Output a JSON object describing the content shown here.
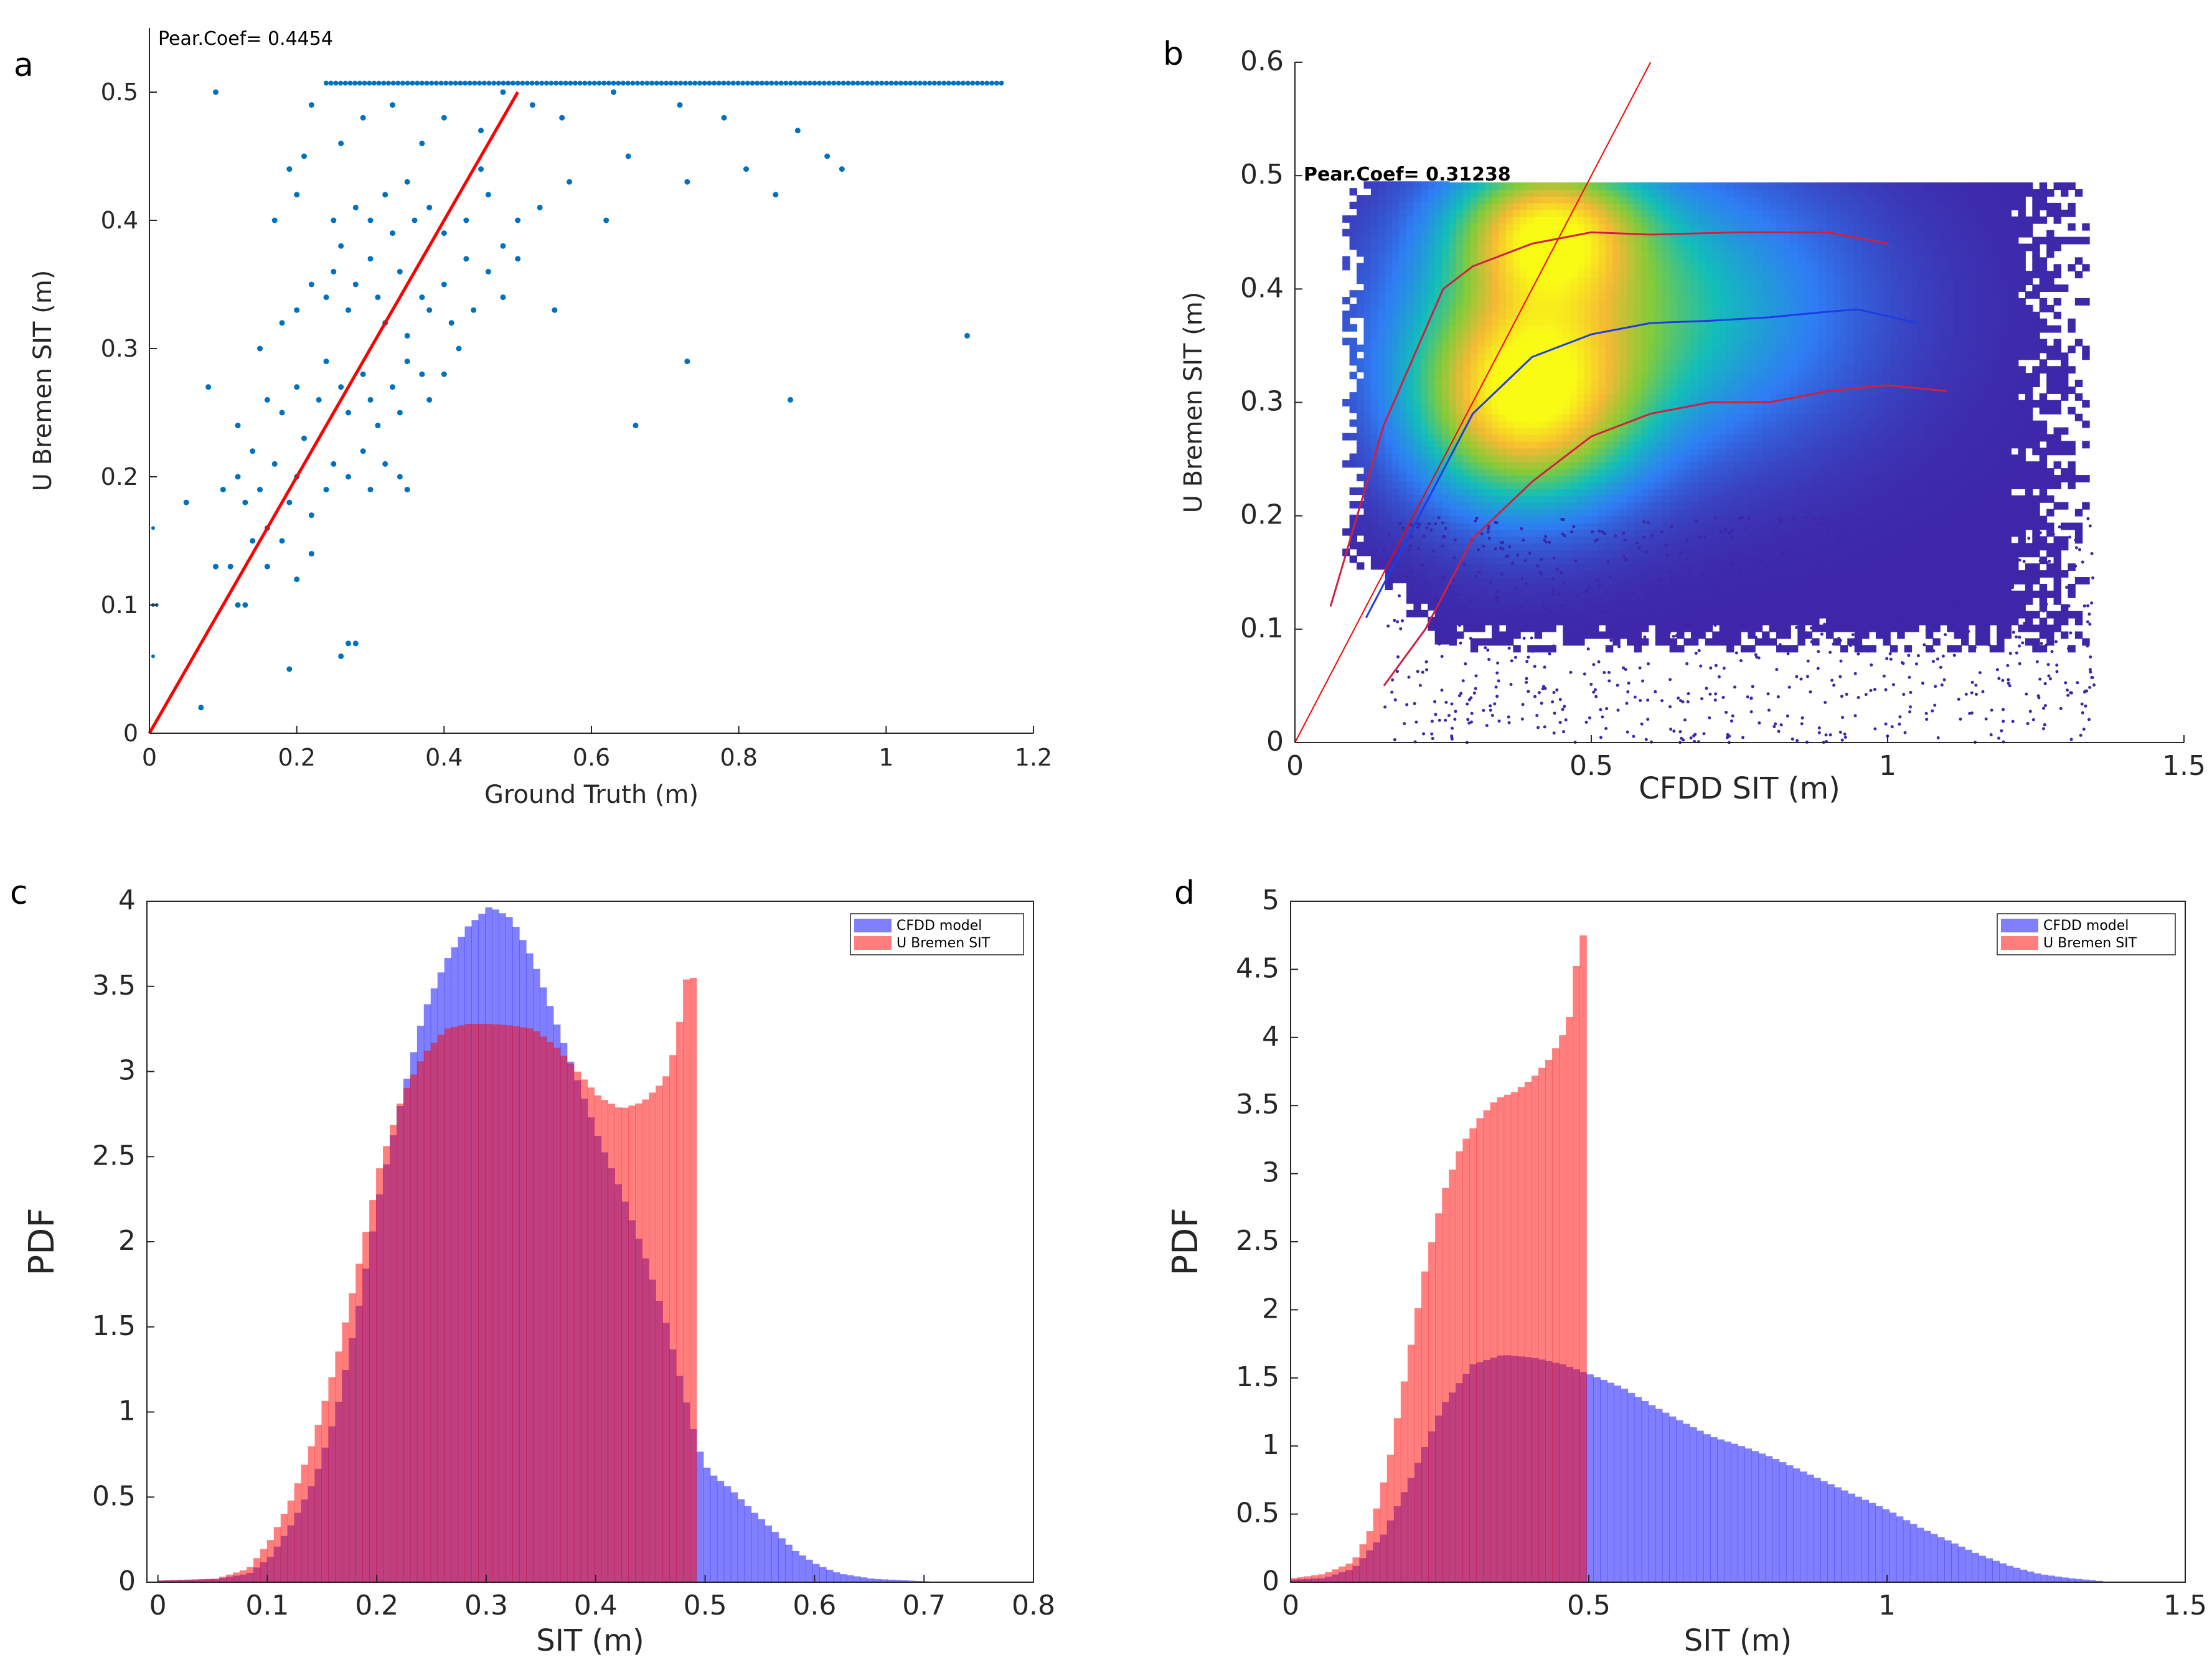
{
  "chart_data": [
    {
      "panel": "a",
      "type": "scatter",
      "annotation": "Pear.Coef= 0.4454",
      "xlabel": "Ground Truth (m)",
      "ylabel": "U Bremen SIT (m)",
      "xlim": [
        0,
        1.2
      ],
      "ylim": [
        0,
        0.55
      ],
      "xticks": [
        0,
        0.2,
        0.4,
        0.6,
        0.8,
        1,
        1.2
      ],
      "xtick_labels": [
        "0",
        "0.2",
        "0.4",
        "0.6",
        "0.8",
        "1",
        "1.2"
      ],
      "yticks": [
        0,
        0.1,
        0.2,
        0.3,
        0.4,
        0.5
      ],
      "ytick_labels": [
        "0",
        "0.1",
        "0.2",
        "0.3",
        "0.4",
        "0.5"
      ],
      "point_color": "#0072BD",
      "fit_color": "#FF0000",
      "fit_line": {
        "x": [
          0,
          0.5
        ],
        "y": [
          0,
          0.5
        ]
      },
      "saturation_row": {
        "y": 0.507,
        "x_start": 0.24,
        "x_end": 1.16
      },
      "points": [
        [
          0.09,
          0.5
        ],
        [
          0.19,
          0.44
        ],
        [
          0.21,
          0.45
        ],
        [
          0.22,
          0.49
        ],
        [
          0.26,
          0.46
        ],
        [
          0.29,
          0.48
        ],
        [
          0.33,
          0.49
        ],
        [
          0.37,
          0.46
        ],
        [
          0.4,
          0.48
        ],
        [
          0.45,
          0.47
        ],
        [
          0.48,
          0.5
        ],
        [
          0.52,
          0.49
        ],
        [
          0.56,
          0.48
        ],
        [
          0.63,
          0.5
        ],
        [
          0.72,
          0.49
        ],
        [
          0.78,
          0.48
        ],
        [
          0.88,
          0.47
        ],
        [
          0.92,
          0.45
        ],
        [
          0.94,
          0.44
        ],
        [
          0.65,
          0.45
        ],
        [
          0.73,
          0.43
        ],
        [
          0.81,
          0.44
        ],
        [
          0.85,
          0.42
        ],
        [
          0.17,
          0.4
        ],
        [
          0.2,
          0.42
        ],
        [
          0.25,
          0.4
        ],
        [
          0.26,
          0.38
        ],
        [
          0.28,
          0.41
        ],
        [
          0.3,
          0.4
        ],
        [
          0.32,
          0.42
        ],
        [
          0.33,
          0.39
        ],
        [
          0.35,
          0.43
        ],
        [
          0.36,
          0.4
        ],
        [
          0.38,
          0.41
        ],
        [
          0.4,
          0.39
        ],
        [
          0.43,
          0.4
        ],
        [
          0.46,
          0.42
        ],
        [
          0.48,
          0.38
        ],
        [
          0.5,
          0.4
        ],
        [
          0.53,
          0.41
        ],
        [
          0.57,
          0.43
        ],
        [
          0.62,
          0.4
        ],
        [
          0.45,
          0.44
        ],
        [
          0.15,
          0.3
        ],
        [
          0.18,
          0.32
        ],
        [
          0.2,
          0.33
        ],
        [
          0.22,
          0.35
        ],
        [
          0.24,
          0.34
        ],
        [
          0.25,
          0.36
        ],
        [
          0.27,
          0.33
        ],
        [
          0.28,
          0.35
        ],
        [
          0.3,
          0.37
        ],
        [
          0.31,
          0.34
        ],
        [
          0.32,
          0.32
        ],
        [
          0.34,
          0.36
        ],
        [
          0.35,
          0.31
        ],
        [
          0.37,
          0.34
        ],
        [
          0.38,
          0.33
        ],
        [
          0.4,
          0.35
        ],
        [
          0.41,
          0.32
        ],
        [
          0.43,
          0.37
        ],
        [
          0.44,
          0.33
        ],
        [
          0.46,
          0.36
        ],
        [
          0.48,
          0.34
        ],
        [
          0.5,
          0.37
        ],
        [
          0.55,
          0.33
        ],
        [
          0.12,
          0.24
        ],
        [
          0.14,
          0.22
        ],
        [
          0.16,
          0.26
        ],
        [
          0.18,
          0.25
        ],
        [
          0.2,
          0.27
        ],
        [
          0.21,
          0.23
        ],
        [
          0.23,
          0.26
        ],
        [
          0.24,
          0.29
        ],
        [
          0.26,
          0.27
        ],
        [
          0.27,
          0.25
        ],
        [
          0.29,
          0.28
        ],
        [
          0.3,
          0.26
        ],
        [
          0.31,
          0.24
        ],
        [
          0.33,
          0.27
        ],
        [
          0.34,
          0.25
        ],
        [
          0.35,
          0.29
        ],
        [
          0.37,
          0.28
        ],
        [
          0.38,
          0.26
        ],
        [
          0.4,
          0.28
        ],
        [
          0.42,
          0.3
        ],
        [
          0.1,
          0.19
        ],
        [
          0.12,
          0.2
        ],
        [
          0.13,
          0.18
        ],
        [
          0.15,
          0.19
        ],
        [
          0.16,
          0.16
        ],
        [
          0.17,
          0.21
        ],
        [
          0.19,
          0.18
        ],
        [
          0.2,
          0.2
        ],
        [
          0.22,
          0.17
        ],
        [
          0.24,
          0.19
        ],
        [
          0.25,
          0.21
        ],
        [
          0.27,
          0.2
        ],
        [
          0.29,
          0.22
        ],
        [
          0.3,
          0.19
        ],
        [
          0.32,
          0.21
        ],
        [
          0.34,
          0.2
        ],
        [
          0.35,
          0.19
        ],
        [
          0.08,
          0.27
        ],
        [
          0.05,
          0.18
        ],
        [
          0.09,
          0.13
        ],
        [
          0.11,
          0.13
        ],
        [
          0.12,
          0.1
        ],
        [
          0.13,
          0.1
        ],
        [
          0.14,
          0.15
        ],
        [
          0.16,
          0.13
        ],
        [
          0.18,
          0.15
        ],
        [
          0.19,
          0.05
        ],
        [
          0.26,
          0.06
        ],
        [
          0.27,
          0.07
        ],
        [
          0.28,
          0.07
        ],
        [
          0.07,
          0.02
        ],
        [
          0.2,
          0.12
        ],
        [
          0.22,
          0.14
        ],
        [
          0.66,
          0.24
        ],
        [
          0.73,
          0.29
        ],
        [
          0.87,
          0.26
        ],
        [
          1.11,
          0.31
        ]
      ]
    },
    {
      "panel": "b",
      "type": "scatter",
      "annotation": "Pear.Coef= 0.31238",
      "xlabel": "CFDD SIT (m)",
      "ylabel": "U Bremen SIT (m)",
      "xlim": [
        0,
        1.5
      ],
      "ylim": [
        0,
        0.6
      ],
      "xticks": [
        0,
        0.5,
        1,
        1.5
      ],
      "xtick_labels": [
        "0",
        "0.5",
        "1",
        "1.5"
      ],
      "yticks": [
        0,
        0.1,
        0.2,
        0.3,
        0.4,
        0.5,
        0.6
      ],
      "ytick_labels": [
        "0",
        "0.1",
        "0.2",
        "0.3",
        "0.4",
        "0.5",
        "0.6"
      ],
      "colormap": [
        "#3E26A8",
        "#2F7DF4",
        "#12BEB9",
        "#84CB39",
        "#F5B934",
        "#F9FB15"
      ],
      "one_to_one_line": {
        "x": [
          0,
          0.6
        ],
        "y": [
          0,
          0.6
        ]
      },
      "median_curve": {
        "color": "#1E3CE6",
        "x": [
          0.12,
          0.2,
          0.3,
          0.4,
          0.5,
          0.6,
          0.7,
          0.8,
          0.9,
          0.95,
          1.05
        ],
        "y": [
          0.11,
          0.19,
          0.29,
          0.34,
          0.36,
          0.37,
          0.372,
          0.375,
          0.38,
          0.382,
          0.37
        ]
      },
      "upper_curve": {
        "color": "#D02040",
        "x": [
          0.06,
          0.15,
          0.25,
          0.3,
          0.4,
          0.5,
          0.6,
          0.75,
          0.9,
          1.0
        ],
        "y": [
          0.12,
          0.28,
          0.4,
          0.42,
          0.44,
          0.45,
          0.448,
          0.45,
          0.45,
          0.44
        ]
      },
      "lower_curve": {
        "color": "#D02040",
        "x": [
          0.15,
          0.22,
          0.3,
          0.4,
          0.5,
          0.6,
          0.7,
          0.8,
          0.9,
          1.0,
          1.1
        ],
        "y": [
          0.05,
          0.1,
          0.18,
          0.23,
          0.27,
          0.29,
          0.3,
          0.3,
          0.31,
          0.315,
          0.31
        ]
      }
    },
    {
      "panel": "c",
      "type": "bar",
      "xlabel": "SIT (m)",
      "ylabel": "PDF",
      "xlim": [
        -0.01,
        0.8
      ],
      "ylim": [
        0,
        4
      ],
      "xticks": [
        0,
        0.1,
        0.2,
        0.3,
        0.4,
        0.5,
        0.6,
        0.7,
        0.8
      ],
      "xtick_labels": [
        "0",
        "0.1",
        "0.2",
        "0.3",
        "0.4",
        "0.5",
        "0.6",
        "0.7",
        "0.8"
      ],
      "yticks": [
        0,
        0.5,
        1,
        1.5,
        2,
        2.5,
        3,
        3.5,
        4
      ],
      "ytick_labels": [
        "0",
        "0.5",
        "1",
        "1.5",
        "2",
        "2.5",
        "3",
        "3.5",
        "4"
      ],
      "legend": [
        "CFDD model",
        "U Bremen SIT"
      ],
      "legend_position": "top-right",
      "series": [
        {
          "name": "CFDD model",
          "color": "#0000FF",
          "opacity": 0.5,
          "x": [
            0,
            0.05,
            0.08,
            0.1,
            0.12,
            0.14,
            0.16,
            0.18,
            0.2,
            0.22,
            0.24,
            0.26,
            0.28,
            0.3,
            0.32,
            0.34,
            0.36,
            0.38,
            0.4,
            0.42,
            0.44,
            0.46,
            0.48,
            0.49,
            0.5,
            0.52,
            0.54,
            0.56,
            0.58,
            0.6,
            0.62,
            0.65,
            0.7
          ],
          "values": [
            0.01,
            0.02,
            0.05,
            0.15,
            0.35,
            0.6,
            1.0,
            1.6,
            2.3,
            2.85,
            3.35,
            3.65,
            3.85,
            3.97,
            3.9,
            3.65,
            3.3,
            2.95,
            2.6,
            2.3,
            1.95,
            1.55,
            1.05,
            0.8,
            0.65,
            0.55,
            0.42,
            0.3,
            0.18,
            0.1,
            0.05,
            0.02,
            0.005
          ]
        },
        {
          "name": "U Bremen SIT",
          "color": "#FF0000",
          "opacity": 0.5,
          "x": [
            0,
            0.05,
            0.08,
            0.1,
            0.12,
            0.14,
            0.16,
            0.18,
            0.2,
            0.22,
            0.24,
            0.26,
            0.28,
            0.3,
            0.32,
            0.34,
            0.36,
            0.38,
            0.4,
            0.42,
            0.44,
            0.46,
            0.47,
            0.48,
            0.49
          ],
          "values": [
            0.01,
            0.02,
            0.08,
            0.25,
            0.5,
            0.85,
            1.3,
            1.85,
            2.45,
            2.85,
            3.1,
            3.25,
            3.28,
            3.28,
            3.27,
            3.25,
            3.15,
            3.0,
            2.85,
            2.78,
            2.82,
            2.95,
            3.15,
            3.55,
            3.55
          ]
        }
      ]
    },
    {
      "panel": "d",
      "type": "bar",
      "xlabel": "SIT (m)",
      "ylabel": "PDF",
      "xlim": [
        0,
        1.5
      ],
      "ylim": [
        0,
        5
      ],
      "xticks": [
        0,
        0.5,
        1,
        1.5
      ],
      "xtick_labels": [
        "0",
        "0.5",
        "1",
        "1.5"
      ],
      "yticks": [
        0,
        0.5,
        1,
        1.5,
        2,
        2.5,
        3,
        3.5,
        4,
        4.5,
        5
      ],
      "ytick_labels": [
        "0",
        "0.5",
        "1",
        "1.5",
        "2",
        "2.5",
        "3",
        "3.5",
        "4",
        "4.5",
        "5"
      ],
      "legend": [
        "CFDD model",
        "U Bremen SIT"
      ],
      "legend_position": "top-right",
      "series": [
        {
          "name": "CFDD model",
          "color": "#0000FF",
          "opacity": 0.5,
          "x": [
            0,
            0.05,
            0.1,
            0.15,
            0.2,
            0.25,
            0.3,
            0.35,
            0.4,
            0.45,
            0.5,
            0.55,
            0.6,
            0.65,
            0.7,
            0.75,
            0.8,
            0.85,
            0.9,
            0.95,
            1.0,
            1.05,
            1.1,
            1.15,
            1.2,
            1.25,
            1.3,
            1.35
          ],
          "values": [
            0.02,
            0.03,
            0.1,
            0.35,
            0.8,
            1.3,
            1.6,
            1.67,
            1.65,
            1.6,
            1.52,
            1.43,
            1.3,
            1.18,
            1.07,
            1.0,
            0.92,
            0.82,
            0.72,
            0.62,
            0.52,
            0.4,
            0.3,
            0.2,
            0.12,
            0.06,
            0.03,
            0.01
          ]
        },
        {
          "name": "U Bremen SIT",
          "color": "#FF0000",
          "opacity": 0.5,
          "x": [
            0,
            0.05,
            0.1,
            0.13,
            0.16,
            0.19,
            0.22,
            0.25,
            0.28,
            0.31,
            0.34,
            0.37,
            0.4,
            0.43,
            0.46,
            0.48,
            0.49
          ],
          "values": [
            0.03,
            0.06,
            0.15,
            0.4,
            0.9,
            1.6,
            2.3,
            2.85,
            3.2,
            3.4,
            3.55,
            3.6,
            3.7,
            3.85,
            4.1,
            4.75,
            4.75
          ]
        }
      ]
    }
  ]
}
